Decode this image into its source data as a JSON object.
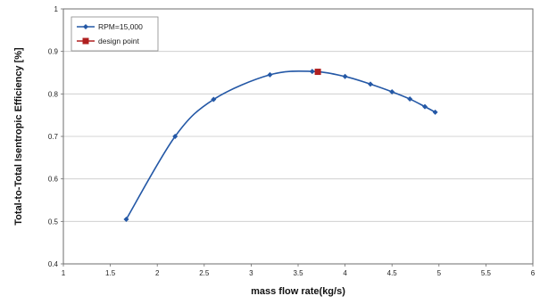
{
  "chart_data": {
    "type": "line",
    "xlabel": "mass flow rate(kg/s)",
    "ylabel": "Total-to-Total Isentropic Efficiency [%]",
    "xlim": [
      1,
      6
    ],
    "ylim": [
      0.4,
      1
    ],
    "x_ticks": [
      "1",
      "1.5",
      "2",
      "2.5",
      "3",
      "3.5",
      "4",
      "4.5",
      "5",
      "5.5",
      "6"
    ],
    "y_ticks": [
      "0.4",
      "0.5",
      "0.6",
      "0.7",
      "0.8",
      "0.9",
      "1"
    ],
    "grid": "horizontal",
    "legend_position": "top-left",
    "series": [
      {
        "name": "RPM=15,000",
        "color": "#2458a6",
        "marker": "diamond",
        "x": [
          1.67,
          2.19,
          2.6,
          3.2,
          3.65,
          4.0,
          4.27,
          4.5,
          4.69,
          4.85,
          4.96
        ],
        "y": [
          0.505,
          0.7,
          0.787,
          0.845,
          0.853,
          0.841,
          0.823,
          0.805,
          0.788,
          0.77,
          0.757
        ]
      },
      {
        "name": "design point",
        "color": "#b02020",
        "marker": "square",
        "x": [
          3.71
        ],
        "y": [
          0.852
        ]
      }
    ]
  }
}
